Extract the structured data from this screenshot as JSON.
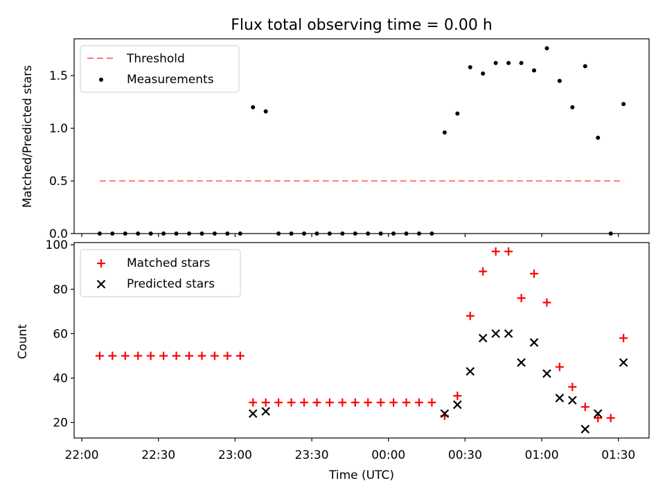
{
  "figure": {
    "title": "Flux total observing time = 0.00 h",
    "xlabel": "Time (UTC)"
  },
  "chart_data": [
    {
      "type": "scatter",
      "panel": "top",
      "title": "Flux total observing time = 0.00 h",
      "xlabel": "",
      "ylabel": "Matched/Predicted stars",
      "xlim": [
        "21:57",
        "01:42"
      ],
      "ylim": [
        0,
        1.85
      ],
      "yticks": [
        0.0,
        0.5,
        1.0,
        1.5
      ],
      "ytick_labels": [
        "0.0",
        "0.5",
        "1.0",
        "1.5"
      ],
      "grid": false,
      "legend_position": "top-left",
      "legend": [
        "Threshold",
        "Measurements"
      ],
      "series": [
        {
          "name": "Threshold",
          "style": "dashed-line",
          "color": "#ff7f7f",
          "x": [
            "22:07",
            "01:32"
          ],
          "y": [
            0.5,
            0.5
          ]
        },
        {
          "name": "Measurements",
          "style": "dot",
          "color": "#000000",
          "x": [
            "22:07",
            "22:12",
            "22:17",
            "22:22",
            "22:27",
            "22:32",
            "22:37",
            "22:42",
            "22:47",
            "22:52",
            "22:57",
            "23:02",
            "23:07",
            "23:12",
            "23:17",
            "23:22",
            "23:27",
            "23:32",
            "23:37",
            "23:42",
            "23:47",
            "23:52",
            "23:57",
            "00:02",
            "00:07",
            "00:12",
            "00:17",
            "00:22",
            "00:27",
            "00:32",
            "00:37",
            "00:42",
            "00:47",
            "00:52",
            "00:57",
            "01:02",
            "01:07",
            "01:12",
            "01:17",
            "01:22",
            "01:27",
            "01:32"
          ],
          "y": [
            0,
            0,
            0,
            0,
            0,
            0,
            0,
            0,
            0,
            0,
            0,
            0,
            1.2,
            1.16,
            0,
            0,
            0,
            0,
            0,
            0,
            0,
            0,
            0,
            0,
            0,
            0,
            0,
            0.96,
            1.14,
            1.58,
            1.52,
            1.62,
            1.62,
            1.62,
            1.55,
            1.76,
            1.45,
            1.2,
            1.59,
            0.91,
            0,
            1.23
          ]
        }
      ]
    },
    {
      "type": "scatter",
      "panel": "bottom",
      "xlabel": "Time (UTC)",
      "ylabel": "Count",
      "xlim": [
        "21:57",
        "01:42"
      ],
      "xticks": [
        "22:00",
        "22:30",
        "23:00",
        "23:30",
        "00:00",
        "00:30",
        "01:00",
        "01:30"
      ],
      "ylim": [
        13,
        101
      ],
      "yticks": [
        20,
        40,
        60,
        80,
        100
      ],
      "grid": false,
      "legend_position": "top-left",
      "legend": [
        "Matched stars",
        "Predicted stars"
      ],
      "series": [
        {
          "name": "Matched stars",
          "marker": "+",
          "color": "#ff0000",
          "x": [
            "22:07",
            "22:12",
            "22:17",
            "22:22",
            "22:27",
            "22:32",
            "22:37",
            "22:42",
            "22:47",
            "22:52",
            "22:57",
            "23:02",
            "23:07",
            "23:12",
            "23:17",
            "23:22",
            "23:27",
            "23:32",
            "23:37",
            "23:42",
            "23:47",
            "23:52",
            "23:57",
            "00:02",
            "00:07",
            "00:12",
            "00:17",
            "00:22",
            "00:27",
            "00:32",
            "00:37",
            "00:42",
            "00:47",
            "00:52",
            "00:57",
            "01:02",
            "01:07",
            "01:12",
            "01:17",
            "01:22",
            "01:27",
            "01:32"
          ],
          "y": [
            50,
            50,
            50,
            50,
            50,
            50,
            50,
            50,
            50,
            50,
            50,
            50,
            29,
            29,
            29,
            29,
            29,
            29,
            29,
            29,
            29,
            29,
            29,
            29,
            29,
            29,
            29,
            23,
            32,
            68,
            88,
            97,
            97,
            76,
            87,
            74,
            45,
            36,
            27,
            22,
            22,
            58
          ]
        },
        {
          "name": "Predicted stars",
          "marker": "x",
          "color": "#000000",
          "x": [
            "23:07",
            "23:12",
            "00:22",
            "00:27",
            "00:32",
            "00:37",
            "00:42",
            "00:47",
            "00:52",
            "00:57",
            "01:02",
            "01:07",
            "01:12",
            "01:17",
            "01:22",
            "01:32"
          ],
          "y": [
            24,
            25,
            24,
            28,
            43,
            58,
            60,
            60,
            47,
            56,
            42,
            31,
            30,
            17,
            24,
            47
          ]
        }
      ]
    }
  ]
}
